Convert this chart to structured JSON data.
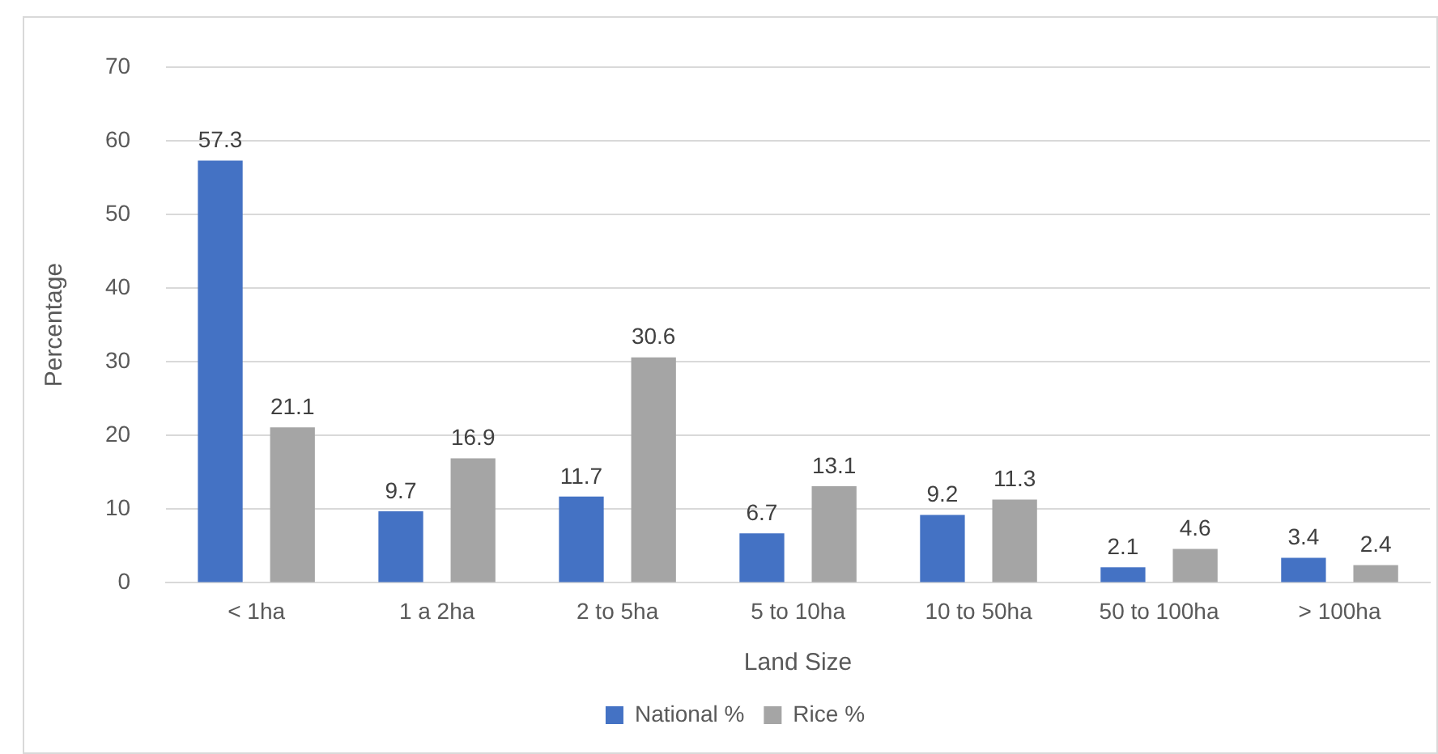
{
  "chart_data": {
    "type": "bar",
    "xlabel": "Land Size",
    "ylabel": "Percentage",
    "categories": [
      "< 1ha",
      "1 a 2ha",
      "2 to 5ha",
      "5 to 10ha",
      "10 to 50ha",
      "50 to 100ha",
      "> 100ha"
    ],
    "series": [
      {
        "name": "National %",
        "color": "#4472c4",
        "values": [
          57.3,
          9.7,
          11.7,
          6.7,
          9.2,
          2.1,
          3.4
        ]
      },
      {
        "name": "Rice %",
        "color": "#a5a5a5",
        "values": [
          21.1,
          16.9,
          30.6,
          13.1,
          11.3,
          4.6,
          2.4
        ]
      }
    ],
    "ylim": [
      0,
      70
    ],
    "yticks": [
      0,
      10,
      20,
      30,
      40,
      50,
      60,
      70
    ],
    "grid": "y",
    "legend": "bottom",
    "data_labels": true
  }
}
